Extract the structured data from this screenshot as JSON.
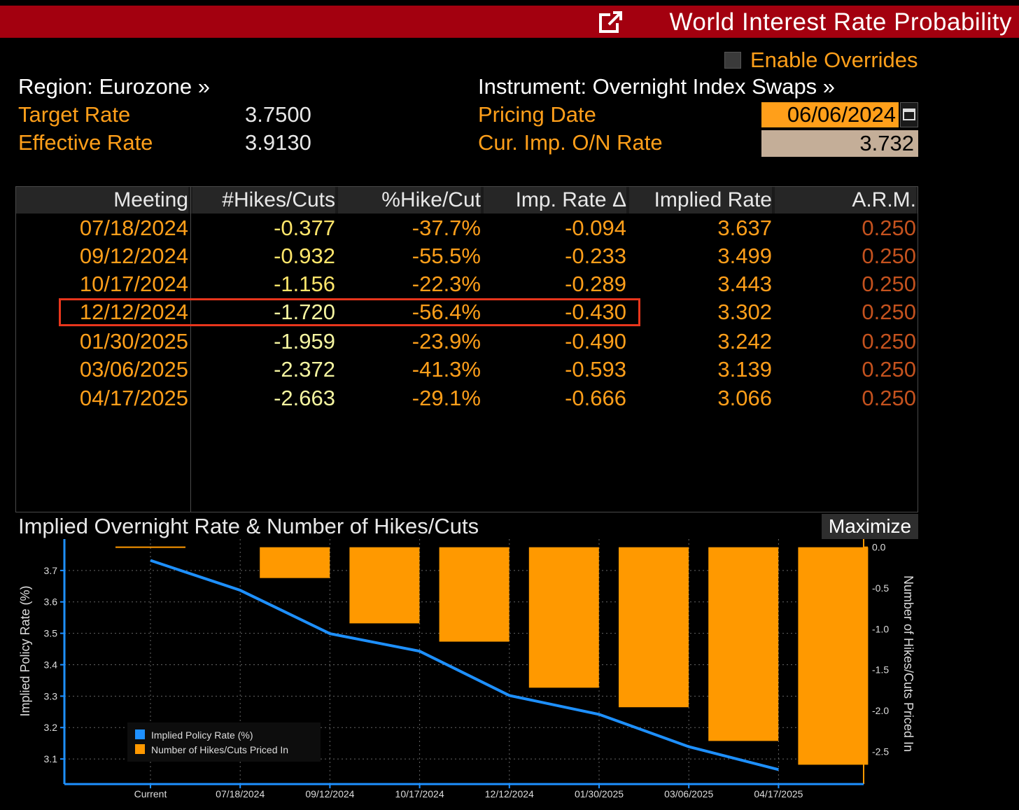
{
  "window": {
    "title": "World Interest Rate Probability",
    "external_icon": "external-link-icon"
  },
  "overrides": {
    "label": "Enable Overrides",
    "checked": false
  },
  "info": {
    "region_label": "Region: Eurozone »",
    "target_rate_label": "Target Rate",
    "target_rate_value": "3.7500",
    "effective_rate_label": "Effective Rate",
    "effective_rate_value": "3.9130",
    "instrument_label": "Instrument: Overnight Index Swaps »",
    "pricing_date_label": "Pricing Date",
    "pricing_date_value": "06/06/2024",
    "cur_imp_label": "Cur. Imp. O/N Rate",
    "cur_imp_value": "3.732"
  },
  "table": {
    "headers": [
      "Meeting",
      "#Hikes/Cuts",
      "%Hike/Cut",
      "Imp. Rate Δ",
      "Implied Rate",
      "A.R.M."
    ],
    "rows": [
      [
        "07/18/2024",
        "-0.377",
        "-37.7%",
        "-0.094",
        "3.637",
        "0.250"
      ],
      [
        "09/12/2024",
        "-0.932",
        "-55.5%",
        "-0.233",
        "3.499",
        "0.250"
      ],
      [
        "10/17/2024",
        "-1.156",
        "-22.3%",
        "-0.289",
        "3.443",
        "0.250"
      ],
      [
        "12/12/2024",
        "-1.720",
        "-56.4%",
        "-0.430",
        "3.302",
        "0.250"
      ],
      [
        "01/30/2025",
        "-1.959",
        "-23.9%",
        "-0.490",
        "3.242",
        "0.250"
      ],
      [
        "03/06/2025",
        "-2.372",
        "-41.3%",
        "-0.593",
        "3.139",
        "0.250"
      ],
      [
        "04/17/2025",
        "-2.663",
        "-29.1%",
        "-0.666",
        "3.066",
        "0.250"
      ]
    ],
    "highlighted_row": 3
  },
  "chart_section": {
    "title": "Implied Overnight Rate & Number of Hikes/Cuts",
    "maximize_label": "Maximize"
  },
  "colors": {
    "line": "#1e90ff",
    "bar": "#ff9900",
    "header_red": "#a3000f",
    "orange_text": "#ff9f1a"
  },
  "chart_data": {
    "type": "bar",
    "title": "Implied Overnight Rate & Number of Hikes/Cuts",
    "categories": [
      "Current",
      "07/18/2024",
      "09/12/2024",
      "10/17/2024",
      "12/12/2024",
      "01/30/2025",
      "03/06/2025",
      "04/17/2025"
    ],
    "series": [
      {
        "name": "Implied Policy Rate (%)",
        "type": "line",
        "axis": "left",
        "values": [
          3.732,
          3.637,
          3.499,
          3.443,
          3.302,
          3.242,
          3.139,
          3.066
        ]
      },
      {
        "name": "Number of Hikes/Cuts Priced In",
        "type": "bar",
        "axis": "right",
        "values": [
          0.0,
          -0.377,
          -0.932,
          -1.156,
          -1.72,
          -1.959,
          -2.372,
          -2.663
        ]
      }
    ],
    "ylabel": "Implied Policy Rate (%)",
    "ylabel_right": "Number of Hikes/Cuts Priced In",
    "ylim": [
      3.02,
      3.8
    ],
    "yticks": [
      "3.1",
      "3.2",
      "3.3",
      "3.4",
      "3.5",
      "3.6",
      "3.7"
    ],
    "ylim_right": [
      -2.9,
      0.1
    ],
    "yticks_right": [
      "0.0",
      "-0.5",
      "-1.0",
      "-1.5",
      "-2.0",
      "-2.5"
    ],
    "legend_position": "bottom-left",
    "grid": true
  }
}
